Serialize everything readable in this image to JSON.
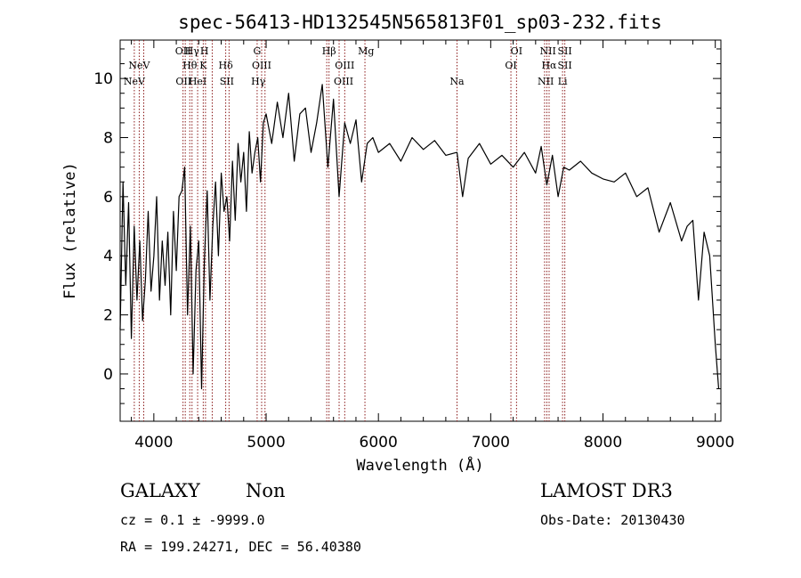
{
  "chart_data": {
    "type": "line",
    "title": "spec-56413-HD132545N565813F01_sp03-232.fits",
    "xlabel": "Wavelength (Å)",
    "ylabel": "Flux (relative)",
    "xlim": [
      3700,
      9050
    ],
    "ylim": [
      -1.6,
      11.3
    ],
    "x_ticks": [
      4000,
      5000,
      6000,
      7000,
      8000,
      9000
    ],
    "y_ticks": [
      0,
      2,
      4,
      6,
      8,
      10
    ],
    "grid": false,
    "series": [
      {
        "color": "#000000",
        "x": [
          3700,
          3725,
          3750,
          3775,
          3800,
          3825,
          3850,
          3875,
          3900,
          3925,
          3950,
          3975,
          4000,
          4025,
          4050,
          4075,
          4100,
          4125,
          4150,
          4175,
          4200,
          4225,
          4250,
          4275,
          4300,
          4325,
          4350,
          4375,
          4400,
          4425,
          4450,
          4475,
          4500,
          4525,
          4550,
          4575,
          4600,
          4625,
          4650,
          4675,
          4700,
          4725,
          4750,
          4775,
          4800,
          4825,
          4850,
          4875,
          4900,
          4925,
          4950,
          4975,
          5000,
          5050,
          5100,
          5150,
          5200,
          5250,
          5300,
          5350,
          5400,
          5450,
          5500,
          5550,
          5600,
          5650,
          5700,
          5750,
          5800,
          5850,
          5900,
          5950,
          6000,
          6100,
          6200,
          6300,
          6400,
          6500,
          6600,
          6700,
          6750,
          6800,
          6900,
          7000,
          7100,
          7200,
          7300,
          7400,
          7450,
          7500,
          7550,
          7600,
          7650,
          7700,
          7800,
          7900,
          8000,
          8100,
          8200,
          8300,
          8400,
          8500,
          8600,
          8700,
          8750,
          8800,
          8850,
          8900,
          8950,
          9000,
          9030
        ],
        "y": [
          1.5,
          6.5,
          3.0,
          5.8,
          1.2,
          5.0,
          2.5,
          4.5,
          1.8,
          3.2,
          5.5,
          2.8,
          4.0,
          6.0,
          2.5,
          4.5,
          3.0,
          4.8,
          2.0,
          5.5,
          3.5,
          6.0,
          6.2,
          7.0,
          2.0,
          5.0,
          0.0,
          3.5,
          4.5,
          -0.5,
          3.8,
          6.2,
          2.5,
          5.0,
          6.5,
          4.0,
          6.8,
          5.5,
          6.0,
          4.5,
          7.2,
          5.2,
          7.8,
          6.5,
          7.5,
          5.5,
          8.2,
          6.8,
          7.5,
          8.0,
          6.5,
          8.5,
          8.8,
          7.8,
          9.2,
          8.0,
          9.5,
          7.2,
          8.8,
          9.0,
          7.5,
          8.5,
          9.8,
          7.0,
          9.3,
          6.0,
          8.5,
          7.8,
          8.6,
          6.5,
          7.8,
          8.0,
          7.5,
          7.8,
          7.2,
          8.0,
          7.6,
          7.9,
          7.4,
          7.5,
          6.0,
          7.3,
          7.8,
          7.1,
          7.4,
          7.0,
          7.5,
          6.8,
          7.7,
          6.4,
          7.4,
          6.0,
          7.0,
          6.9,
          7.2,
          6.8,
          6.6,
          6.5,
          6.8,
          6.0,
          6.3,
          4.8,
          5.8,
          4.5,
          5.0,
          5.2,
          2.5,
          4.8,
          4.0,
          1.0,
          -0.5
        ]
      }
    ],
    "annotations": [
      {
        "label": "NeV",
        "x": 3826,
        "row": 3
      },
      {
        "label": "NeV",
        "x": 3870,
        "row": 2
      },
      {
        "label": "OII",
        "x": 4260,
        "row": 1
      },
      {
        "label": "OII",
        "x": 4265,
        "row": 3
      },
      {
        "label": "Hγ",
        "x": 4340,
        "row": 1
      },
      {
        "label": "Hθ",
        "x": 4320,
        "row": 2
      },
      {
        "label": "HeI",
        "x": 4390,
        "row": 3
      },
      {
        "label": "H",
        "x": 4450,
        "row": 1
      },
      {
        "label": "K",
        "x": 4440,
        "row": 2
      },
      {
        "label": "Hδ",
        "x": 4640,
        "row": 2
      },
      {
        "label": "SII",
        "x": 4650,
        "row": 3
      },
      {
        "label": "G",
        "x": 4920,
        "row": 1
      },
      {
        "label": "OIII",
        "x": 4960,
        "row": 2
      },
      {
        "label": "Hγ",
        "x": 4930,
        "row": 3
      },
      {
        "label": "Hβ",
        "x": 5560,
        "row": 1
      },
      {
        "label": "OIII",
        "x": 5700,
        "row": 2
      },
      {
        "label": "OIII",
        "x": 5690,
        "row": 3
      },
      {
        "label": "Mg",
        "x": 5890,
        "row": 1
      },
      {
        "label": "Na",
        "x": 6700,
        "row": 3
      },
      {
        "label": "OI",
        "x": 7230,
        "row": 1
      },
      {
        "label": "OI",
        "x": 7180,
        "row": 2
      },
      {
        "label": "NII",
        "x": 7510,
        "row": 1
      },
      {
        "label": "Hα",
        "x": 7520,
        "row": 2
      },
      {
        "label": "NII",
        "x": 7490,
        "row": 3
      },
      {
        "label": "SII",
        "x": 7660,
        "row": 1
      },
      {
        "label": "SII",
        "x": 7660,
        "row": 2
      },
      {
        "label": "Li",
        "x": 7640,
        "row": 3
      }
    ],
    "line_marker_x": [
      3826,
      3870,
      3910,
      4260,
      4280,
      4320,
      4340,
      4390,
      4440,
      4460,
      4520,
      4640,
      4670,
      4920,
      4960,
      4990,
      5540,
      5560,
      5650,
      5700,
      5880,
      6700,
      7180,
      7230,
      7480,
      7500,
      7520,
      7640,
      7660
    ]
  },
  "info": {
    "object_class": "GALAXY",
    "subclass": "Non",
    "survey": "LAMOST DR3",
    "cz": "cz = 0.1 ± -9999.0",
    "obs_date": "Obs-Date: 20130430",
    "coords": "RA = 199.24271, DEC =  56.40380"
  },
  "colors": {
    "spectrum": "#000000",
    "line_markers": "#8b1a1a",
    "background": "#ffffff"
  }
}
